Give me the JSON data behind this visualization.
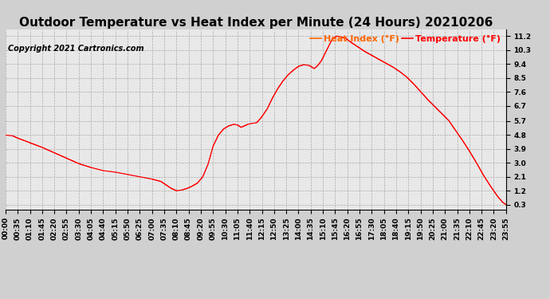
{
  "title": "Outdoor Temperature vs Heat Index per Minute (24 Hours) 20210206",
  "copyright": "Copyright 2021 Cartronics.com",
  "legend_heat": "Heat Index (°F)",
  "legend_temp": "Temperature (°F)",
  "legend_heat_color": "#ff6600",
  "legend_temp_color": "#ff0000",
  "line_color": "#ff0000",
  "bg_color": "#d0d0d0",
  "plot_bg_color": "#e8e8e8",
  "grid_color": "#aaaaaa",
  "yticks": [
    0.3,
    1.2,
    2.1,
    3.0,
    3.9,
    4.8,
    5.7,
    6.7,
    7.6,
    8.5,
    9.4,
    10.3,
    11.2
  ],
  "ylim_min": 0.0,
  "ylim_max": 11.6,
  "xtick_labels": [
    "00:00",
    "00:35",
    "01:10",
    "01:45",
    "02:20",
    "02:55",
    "03:30",
    "04:05",
    "04:40",
    "05:15",
    "05:50",
    "06:25",
    "07:00",
    "07:35",
    "08:10",
    "08:45",
    "09:20",
    "09:55",
    "10:30",
    "11:05",
    "11:40",
    "12:15",
    "12:50",
    "13:25",
    "14:00",
    "14:35",
    "15:10",
    "15:45",
    "16:20",
    "16:55",
    "17:30",
    "18:05",
    "18:40",
    "19:15",
    "19:50",
    "20:25",
    "21:00",
    "21:35",
    "22:10",
    "22:45",
    "23:20",
    "23:55"
  ],
  "xtick_positions": [
    0,
    35,
    70,
    105,
    140,
    175,
    210,
    245,
    280,
    315,
    350,
    385,
    420,
    455,
    490,
    525,
    560,
    595,
    630,
    665,
    700,
    735,
    770,
    805,
    840,
    875,
    910,
    945,
    980,
    1015,
    1050,
    1085,
    1120,
    1155,
    1190,
    1225,
    1260,
    1295,
    1330,
    1365,
    1400,
    1435
  ],
  "cp_x": [
    0,
    20,
    35,
    70,
    105,
    140,
    175,
    210,
    245,
    280,
    315,
    350,
    385,
    420,
    445,
    455,
    465,
    475,
    490,
    505,
    520,
    535,
    550,
    565,
    580,
    595,
    610,
    625,
    640,
    655,
    665,
    675,
    685,
    695,
    705,
    720,
    735,
    750,
    765,
    780,
    795,
    810,
    825,
    840,
    855,
    870,
    885,
    895,
    905,
    915,
    925,
    935,
    945,
    950,
    960,
    975,
    990,
    1010,
    1030,
    1050,
    1070,
    1090,
    1110,
    1130,
    1150,
    1170,
    1190,
    1210,
    1230,
    1250,
    1270,
    1290,
    1310,
    1330,
    1350,
    1370,
    1390,
    1410,
    1425,
    1435
  ],
  "cp_y": [
    4.8,
    4.75,
    4.6,
    4.3,
    4.0,
    3.65,
    3.3,
    2.95,
    2.7,
    2.5,
    2.4,
    2.25,
    2.1,
    1.95,
    1.8,
    1.65,
    1.5,
    1.35,
    1.2,
    1.25,
    1.35,
    1.5,
    1.7,
    2.1,
    2.9,
    4.1,
    4.8,
    5.2,
    5.4,
    5.5,
    5.45,
    5.3,
    5.4,
    5.5,
    5.55,
    5.6,
    6.0,
    6.5,
    7.2,
    7.8,
    8.3,
    8.7,
    9.0,
    9.25,
    9.35,
    9.3,
    9.1,
    9.3,
    9.6,
    10.05,
    10.5,
    10.95,
    11.15,
    11.2,
    11.15,
    11.05,
    10.8,
    10.5,
    10.2,
    9.95,
    9.7,
    9.45,
    9.2,
    8.9,
    8.55,
    8.1,
    7.6,
    7.1,
    6.65,
    6.2,
    5.75,
    5.1,
    4.45,
    3.75,
    3.0,
    2.2,
    1.5,
    0.85,
    0.45,
    0.3
  ],
  "title_fontsize": 11,
  "copyright_fontsize": 7,
  "tick_fontsize": 6.5,
  "legend_fontsize": 8
}
